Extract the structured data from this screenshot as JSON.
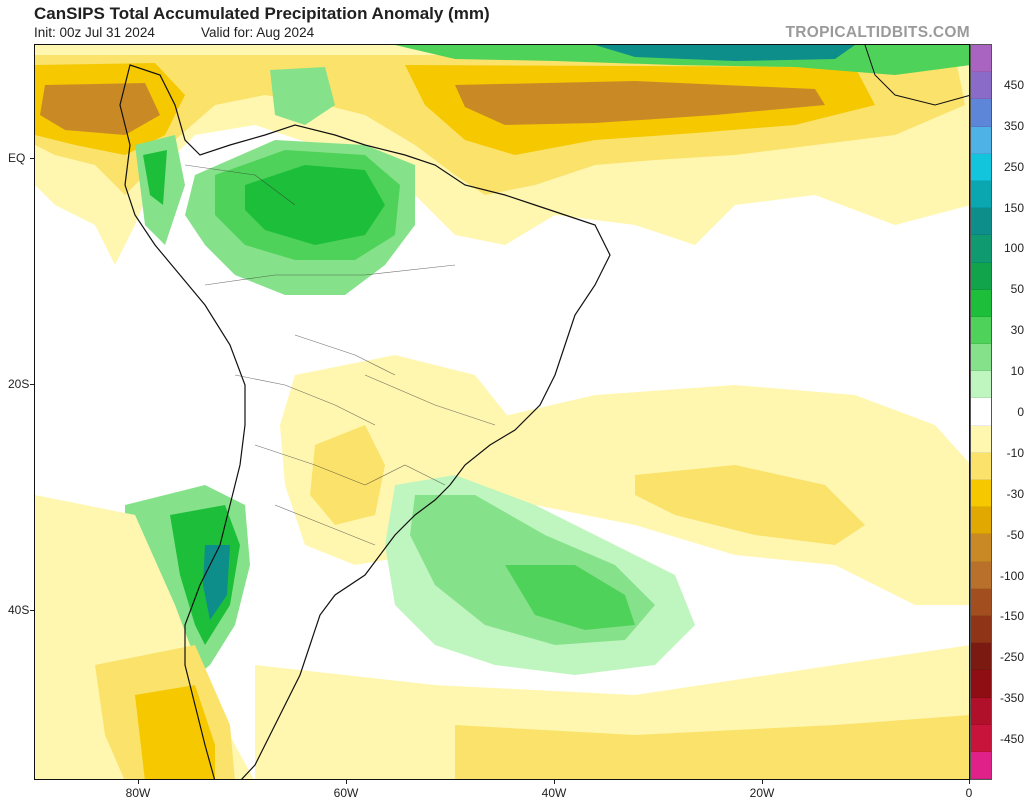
{
  "header": {
    "title": "CanSIPS Total Accumulated Precipitation Anomaly (mm)",
    "init": "Init: 00z Jul 31 2024",
    "valid": "Valid for: Aug 2024",
    "brand": "TROPICALTIDBITS.COM"
  },
  "axes": {
    "lat_labels": [
      "EQ",
      "20S",
      "40S"
    ],
    "lon_labels": [
      "80W",
      "60W",
      "40W",
      "20W",
      "0"
    ]
  },
  "colorbar": {
    "colors": [
      "#e0218a",
      "#c8133a",
      "#b0102a",
      "#8e0e13",
      "#7a1a10",
      "#8f3417",
      "#a24e1f",
      "#b8702a",
      "#c98a26",
      "#e0a800",
      "#f5c800",
      "#fbe26a",
      "#fff7b0",
      "#ffffff",
      "#bff5bf",
      "#86e28a",
      "#4fd25a",
      "#1dbf3a",
      "#12a44a",
      "#0f9a70",
      "#0e8e8a",
      "#0aa7b0",
      "#12c4dc",
      "#4fb2e6",
      "#5e86d8",
      "#8a6cc8",
      "#a864c0"
    ],
    "labels": [
      "-450",
      "-350",
      "-250",
      "-150",
      "-100",
      "-50",
      "-30",
      "-10",
      "0",
      "10",
      "30",
      "50",
      "100",
      "150",
      "250",
      "350",
      "450"
    ],
    "label_levels": [
      -450,
      -350,
      -250,
      -150,
      -100,
      -50,
      -30,
      -10,
      0,
      10,
      30,
      50,
      100,
      150,
      250,
      350,
      450
    ]
  },
  "map": {
    "dry_color_light": "#fff7b0",
    "dry_color_mid": "#fbe26a",
    "dry_color_strong": "#f5c800",
    "dry_color_deep": "#c98a26",
    "wet_color_light": "#bff5bf",
    "wet_color_mid": "#86e28a",
    "wet_color_strong": "#4fd25a",
    "wet_color_deep": "#1dbf3a",
    "wet_color_max": "#0e8e8a"
  }
}
